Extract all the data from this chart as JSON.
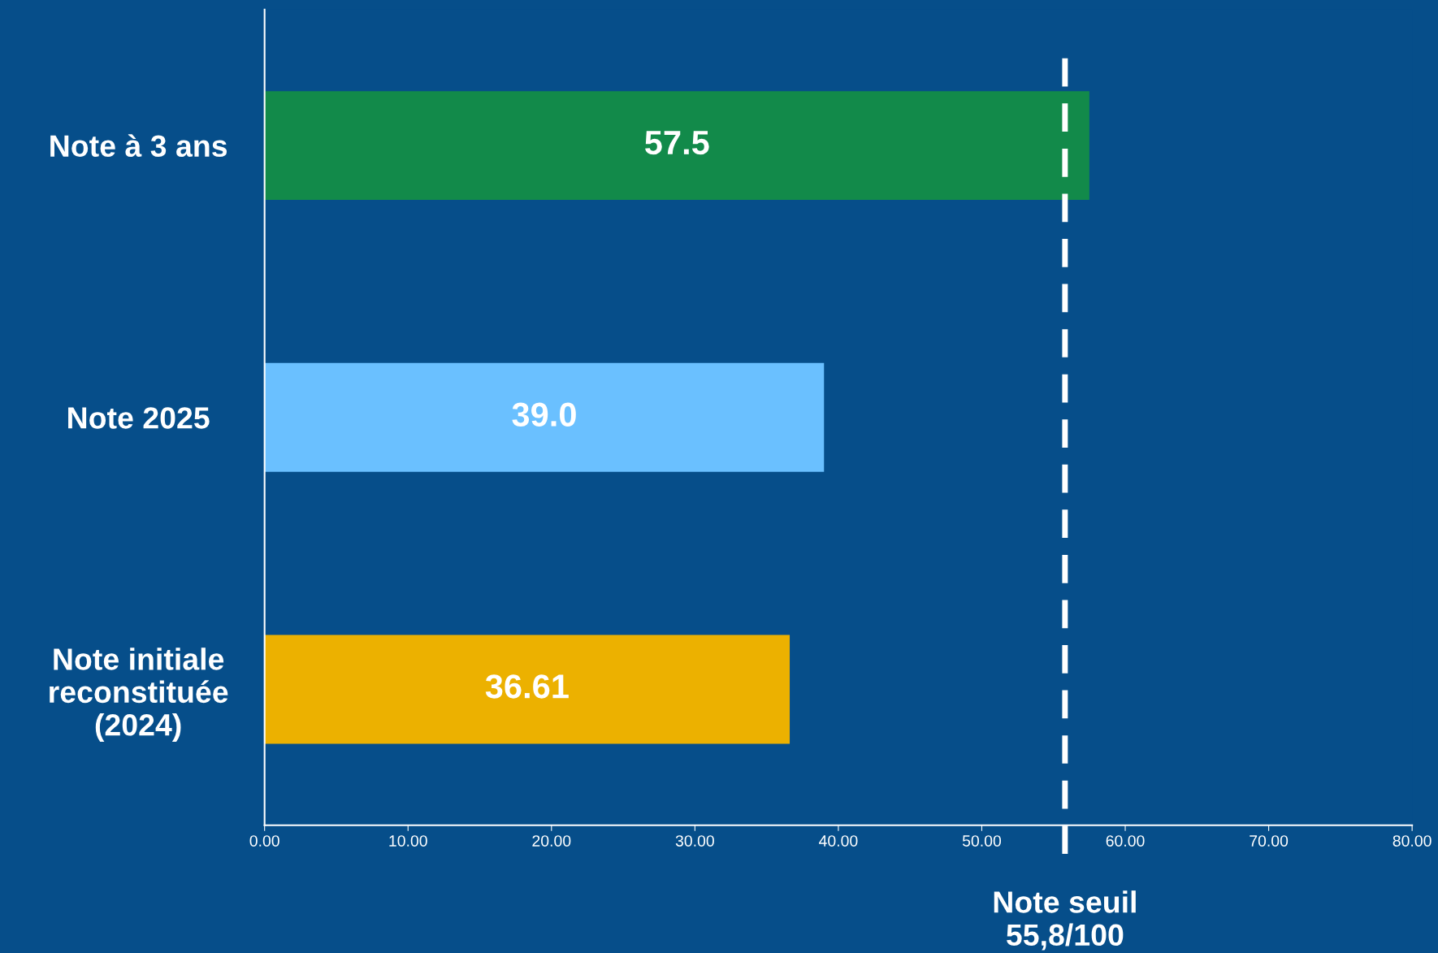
{
  "chart_data": {
    "type": "bar",
    "orientation": "horizontal",
    "categories": [
      "Note à 3 ans",
      "Note 2025",
      "Note initiale\nreconstituée\n(2024)"
    ],
    "values": [
      57.5,
      39.0,
      36.61
    ],
    "colors": [
      "#128a4a",
      "#6ac0ff",
      "#ecb100"
    ],
    "value_labels": [
      "57.5",
      "39.0",
      "36.61"
    ],
    "xlim": [
      0,
      80
    ],
    "xticks": [
      {
        "value": 0,
        "label": "0.00"
      },
      {
        "value": 10,
        "label": "10.00"
      },
      {
        "value": 20,
        "label": "20.00"
      },
      {
        "value": 30,
        "label": "30.00"
      },
      {
        "value": 40,
        "label": "40.00"
      },
      {
        "value": 50,
        "label": "50.00"
      },
      {
        "value": 60,
        "label": "60.00"
      },
      {
        "value": 70,
        "label": "70.00"
      },
      {
        "value": 80,
        "label": "80.00"
      }
    ],
    "ref_lines": [
      {
        "axis": "x",
        "value": 55.8,
        "label": "Note seuil\n55,8/100",
        "color": "#ffffff",
        "line_style": "dashed"
      }
    ],
    "grid": false,
    "legend": false
  }
}
